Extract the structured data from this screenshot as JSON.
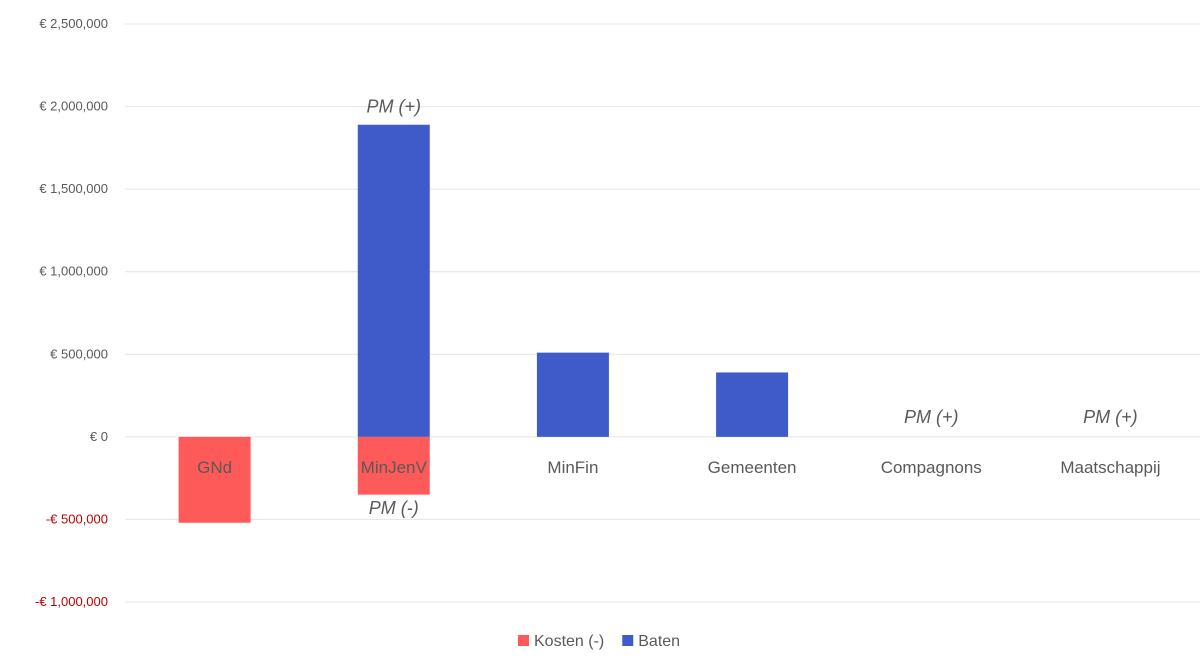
{
  "chart_data": {
    "type": "bar",
    "categories": [
      "GNd",
      "MinJenV",
      "MinFin",
      "Gemeenten",
      "Compagnons",
      "Maatschappij"
    ],
    "series": [
      {
        "name": "Kosten (-)",
        "color": "#ff5a5a",
        "values": [
          -520000,
          -350000,
          0,
          0,
          0,
          0
        ]
      },
      {
        "name": "Baten",
        "color": "#3f5bc9",
        "values": [
          0,
          1890000,
          510000,
          390000,
          0,
          0
        ]
      }
    ],
    "ylim": [
      -1000000,
      2500000
    ],
    "yticks": [
      {
        "value": 2500000,
        "label": "€ 2,500,000"
      },
      {
        "value": 2000000,
        "label": "€ 2,000,000"
      },
      {
        "value": 1500000,
        "label": "€ 1,500,000"
      },
      {
        "value": 1000000,
        "label": "€ 1,000,000"
      },
      {
        "value": 500000,
        "label": "€ 500,000"
      },
      {
        "value": 0,
        "label": "€ 0"
      },
      {
        "value": -500000,
        "label": "-€ 500,000"
      },
      {
        "value": -1000000,
        "label": "-€ 1,000,000"
      }
    ],
    "negative_tick_color": "#c00000",
    "annotations": [
      {
        "category": "MinJenV",
        "text": "PM (+)",
        "value": 2000000
      },
      {
        "category": "MinJenV",
        "text": "PM (-)",
        "value": -430000
      },
      {
        "category": "Compagnons",
        "text": "PM (+)",
        "value": 120000
      },
      {
        "category": "Maatschappij",
        "text": "PM (+)",
        "value": 120000
      }
    ],
    "grid": true,
    "legend_position": "bottom-center",
    "title": "",
    "xlabel": "",
    "ylabel": ""
  }
}
